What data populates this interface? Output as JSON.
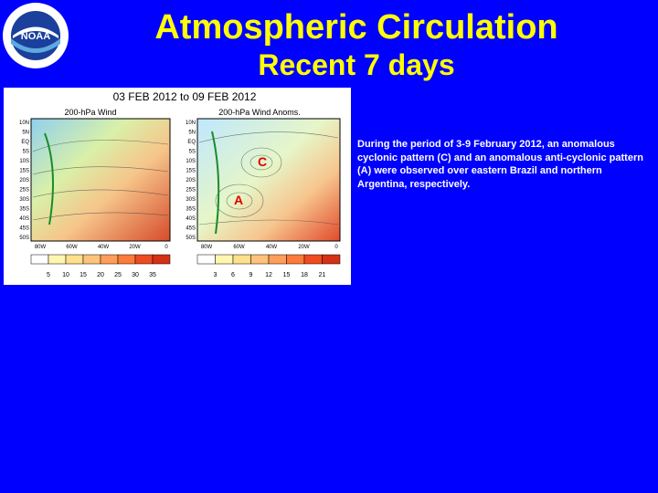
{
  "title": "Atmospheric Circulation",
  "subtitle": "Recent 7 days",
  "logo": {
    "text": "NOAA"
  },
  "figure": {
    "date_range": "03 FEB 2012 to 09 FEB 2012",
    "left_panel": {
      "title": "200-hPa Wind",
      "lat_labels": [
        "10N",
        "5N",
        "EQ",
        "5S",
        "10S",
        "15S",
        "20S",
        "25S",
        "30S",
        "35S",
        "40S",
        "45S",
        "50S"
      ],
      "lon_labels": [
        "80W",
        "60W",
        "40W",
        "20W",
        "0"
      ],
      "colorbar_labels": [
        "5",
        "10",
        "15",
        "20",
        "25",
        "30",
        "35"
      ]
    },
    "right_panel": {
      "title": "200-hPa Wind Anoms.",
      "lat_labels": [
        "10N",
        "5N",
        "EQ",
        "5S",
        "10S",
        "15S",
        "20S",
        "25S",
        "30S",
        "35S",
        "40S",
        "45S",
        "50S"
      ],
      "lon_labels": [
        "80W",
        "60W",
        "40W",
        "20W",
        "0"
      ],
      "colorbar_labels": [
        "3",
        "6",
        "9",
        "12",
        "15",
        "18",
        "21"
      ],
      "markers": {
        "cyclonic": "C",
        "anticyclonic": "A"
      }
    }
  },
  "description": "During the period of 3-9 February 2012, an anomalous cyclonic pattern (C) and an anomalous anti-cyclonic pattern (A) were observed over eastern Brazil and northern Argentina, respectively."
}
